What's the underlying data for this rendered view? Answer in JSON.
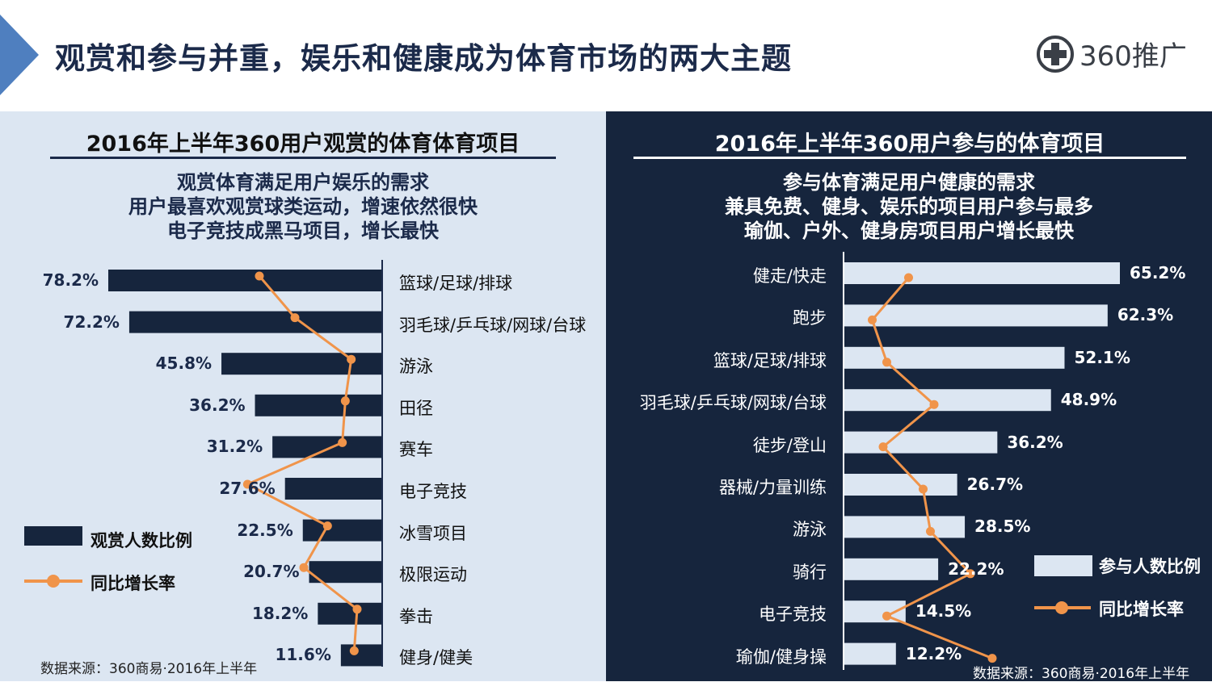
{
  "header": {
    "title": "观赏和参与并重，娱乐和健康成为体育市场的两大主题",
    "logo_text": "360推广"
  },
  "left": {
    "title": "2016年上半年360用户观赏的体育体育项目",
    "subtitle_lines": [
      "观赏体育满足用户娱乐的需求",
      "用户最喜欢观赏球类运动，增速依然很快",
      "电子竞技成黑马项目，增长最快"
    ],
    "legend": {
      "bar": "观赏人数比例",
      "line": "同比增长率"
    },
    "source": "数据来源：360商易·2016年上半年"
  },
  "right": {
    "title": "2016年上半年360用户参与的体育项目",
    "subtitle_lines": [
      "参与体育满足用户健康的需求",
      "兼具免费、健身、娱乐的项目用户参与最多",
      "瑜伽、户外、健身房项目用户增长最快"
    ],
    "legend": {
      "bar": "参与人数比例",
      "line": "同比增长率"
    },
    "source": "数据来源：360商易·2016年上半年"
  },
  "colors": {
    "navy": "#16253d",
    "light": "#dce6f2",
    "orange": "#f0944a",
    "title": "#1b2a4a"
  },
  "chart_data": [
    {
      "type": "bar",
      "orientation": "horizontal",
      "title": "2016年上半年360用户观赏的体育体育项目",
      "categories": [
        "篮球/足球/排球",
        "羽毛球/乒乓球/网球/台球",
        "游泳",
        "田径",
        "赛车",
        "电子竞技",
        "冰雪项目",
        "极限运动",
        "拳击",
        "健身/健美"
      ],
      "series": [
        {
          "name": "观赏人数比例",
          "values": [
            78.2,
            72.2,
            45.8,
            36.2,
            31.2,
            27.6,
            22.5,
            20.7,
            18.2,
            11.6
          ],
          "labels": [
            "78.2%",
            "72.2%",
            "45.8%",
            "36.2%",
            "31.2%",
            "27.6%",
            "22.5%",
            "20.7%",
            "18.2%",
            "11.6%"
          ]
        },
        {
          "name": "同比增长率",
          "type": "line",
          "values": [
            42,
            30,
            11,
            13,
            14,
            46,
            19,
            27,
            9,
            10
          ]
        }
      ],
      "bar_max": 80,
      "line_range": [
        0,
        60
      ]
    },
    {
      "type": "bar",
      "orientation": "horizontal",
      "title": "2016年上半年360用户参与的体育项目",
      "categories": [
        "健走/快走",
        "跑步",
        "篮球/足球/排球",
        "羽毛球/乒乓球/网球/台球",
        "徒步/登山",
        "器械/力量训练",
        "游泳",
        "骑行",
        "电子竞技",
        "瑜伽/健身操"
      ],
      "series": [
        {
          "name": "参与人数比例",
          "values": [
            65.2,
            62.3,
            52.1,
            48.9,
            36.2,
            26.7,
            28.5,
            22.2,
            14.5,
            12.2
          ],
          "labels": [
            "65.2%",
            "62.3%",
            "52.1%",
            "48.9%",
            "36.2%",
            "26.7%",
            "28.5%",
            "22.2%",
            "14.5%",
            "12.2%"
          ]
        },
        {
          "name": "同比增长率",
          "type": "line",
          "values": [
            21,
            11,
            15,
            28,
            14,
            25,
            27,
            38,
            15,
            44
          ]
        }
      ],
      "bar_max": 80,
      "line_range": [
        0,
        60
      ]
    }
  ]
}
